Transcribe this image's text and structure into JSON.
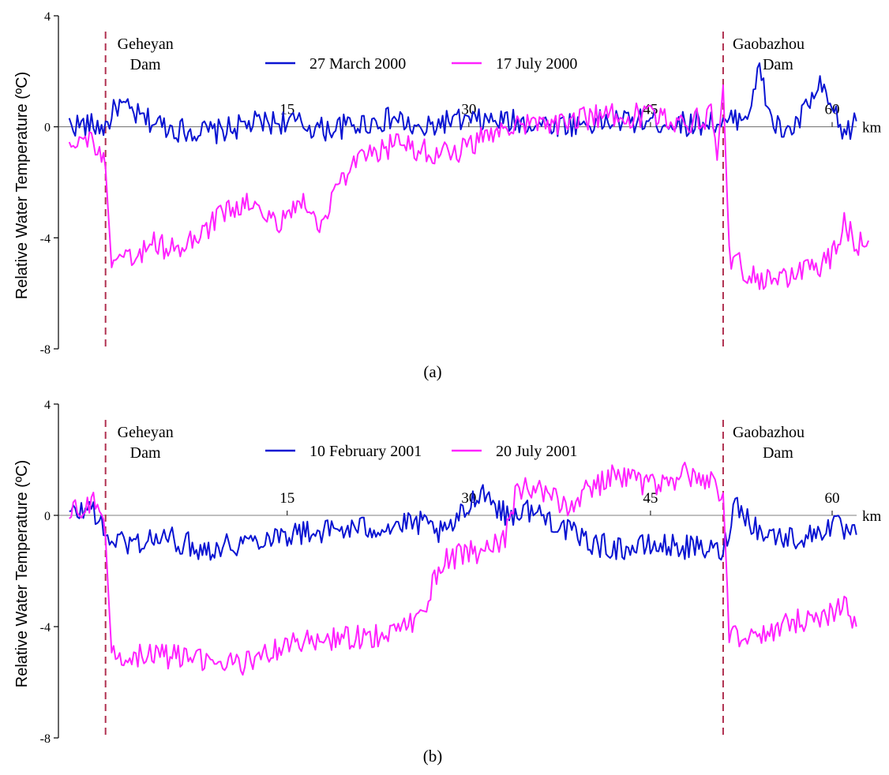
{
  "y_axis_label": "Relative Water Temperature (ºC)",
  "x_unit_label": "km",
  "dam_labels": {
    "left": [
      "Geheyan",
      "Dam"
    ],
    "right": [
      "Gaobazhou",
      "Dam"
    ]
  },
  "colors": {
    "march": "#0a14d2",
    "july": "#ff22ff",
    "dam_line": "#b03050",
    "axis": "#000000",
    "zero_line": "#555555"
  },
  "chart_data": [
    {
      "type": "line",
      "panel_label": "(a)",
      "ylim": [
        -8,
        4
      ],
      "yticks": [
        4,
        0,
        -4,
        -8
      ],
      "xlim": [
        -3.5,
        63
      ],
      "xticks": [
        15,
        30,
        45,
        60
      ],
      "dam_positions_km": [
        0,
        51
      ],
      "legend_position": "top-center",
      "series": [
        {
          "name": "27 March 2000",
          "color": "#0a14d2",
          "x": [
            -3,
            0,
            1,
            3,
            6,
            9,
            12,
            15,
            18,
            21,
            24,
            26,
            28,
            30,
            33,
            36,
            39,
            42,
            45,
            48,
            50,
            51,
            52,
            53,
            54,
            55,
            56,
            57,
            58,
            59,
            60,
            61,
            62
          ],
          "y": [
            0.1,
            0.0,
            0.8,
            0.3,
            -0.1,
            -0.2,
            0.1,
            0.2,
            -0.1,
            0.1,
            0.3,
            -0.2,
            0.2,
            0.2,
            0.2,
            0.1,
            0.1,
            0.2,
            0.2,
            0.1,
            0.2,
            0.0,
            0.3,
            0.5,
            2.0,
            0.2,
            -0.2,
            0.0,
            0.8,
            1.4,
            0.6,
            -0.3,
            0.2
          ]
        },
        {
          "name": "17 July 2000",
          "color": "#ff22ff",
          "x": [
            -3,
            -1,
            0,
            0.5,
            2,
            4,
            6,
            8,
            10,
            12,
            14,
            16,
            18,
            19,
            20,
            22,
            24,
            26,
            28,
            30,
            32,
            33,
            36,
            39,
            42,
            45,
            48,
            50,
            50.5,
            51,
            51.5,
            53,
            55,
            57,
            59,
            60,
            61,
            62,
            63
          ],
          "y": [
            -0.4,
            -0.5,
            -1.5,
            -5.0,
            -4.8,
            -4.2,
            -4.5,
            -3.8,
            -3.0,
            -2.8,
            -3.5,
            -2.7,
            -3.5,
            -2.2,
            -1.6,
            -1.0,
            -0.6,
            -0.8,
            -1.0,
            -0.7,
            -0.2,
            0.1,
            0.0,
            0.3,
            0.4,
            0.4,
            0.2,
            0.4,
            -1.2,
            1.5,
            -4.6,
            -5.3,
            -5.6,
            -5.3,
            -5.0,
            -4.6,
            -3.5,
            -4.2,
            -4.1
          ]
        }
      ]
    },
    {
      "type": "line",
      "panel_label": "(b)",
      "ylim": [
        -8,
        4
      ],
      "yticks": [
        4,
        0,
        -4,
        -8
      ],
      "xlim": [
        -3.5,
        63
      ],
      "xticks": [
        15,
        30,
        45,
        60
      ],
      "dam_positions_km": [
        0,
        51
      ],
      "legend_position": "top-center",
      "series": [
        {
          "name": "10 February 2001",
          "color": "#0a14d2",
          "x": [
            -3,
            -1,
            0,
            2,
            5,
            8,
            11,
            14,
            17,
            20,
            23,
            26,
            28,
            30,
            31,
            33,
            35,
            37,
            39,
            41,
            43,
            45,
            47,
            49,
            51,
            52,
            54,
            56,
            58,
            60,
            61,
            62
          ],
          "y": [
            0.0,
            0.3,
            -0.8,
            -1.0,
            -0.8,
            -1.2,
            -1.0,
            -0.7,
            -0.6,
            -0.5,
            -0.4,
            -0.3,
            -0.7,
            0.3,
            1.0,
            0.0,
            0.2,
            -0.2,
            -0.8,
            -1.1,
            -1.2,
            -1.1,
            -1.1,
            -1.2,
            -1.3,
            0.5,
            -0.6,
            -0.8,
            -0.8,
            -0.3,
            -0.6,
            -0.7
          ]
        },
        {
          "name": "20 July 2001",
          "color": "#ff22ff",
          "x": [
            -3,
            -1,
            0,
            0.5,
            3,
            6,
            9,
            12,
            15,
            18,
            21,
            24,
            26,
            27,
            28,
            30,
            31,
            33,
            34,
            35,
            36,
            38,
            40,
            42,
            44,
            46,
            48,
            50,
            51,
            51.5,
            53,
            55,
            57,
            59,
            61,
            62
          ],
          "y": [
            0.1,
            0.5,
            -0.8,
            -5.0,
            -5.0,
            -5.1,
            -5.3,
            -5.3,
            -4.6,
            -4.5,
            -4.4,
            -4.2,
            -3.6,
            -2.5,
            -1.6,
            -1.3,
            -1.4,
            -0.8,
            1.0,
            1.1,
            0.8,
            0.3,
            1.0,
            1.4,
            1.2,
            1.0,
            1.5,
            1.2,
            0.8,
            -4.2,
            -4.4,
            -4.2,
            -3.8,
            -3.6,
            -3.3,
            -4.0
          ]
        }
      ]
    }
  ]
}
